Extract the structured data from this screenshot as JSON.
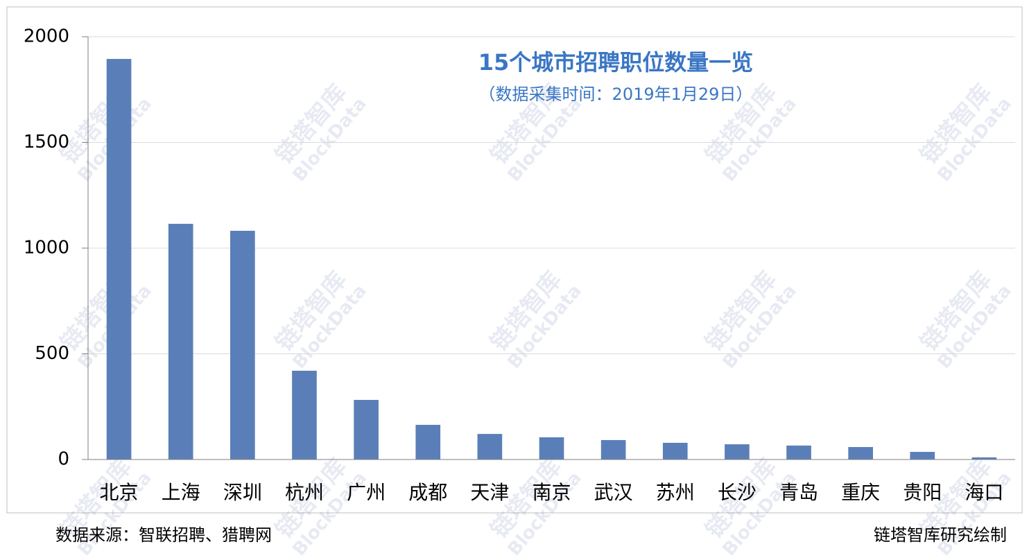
{
  "chart_data": {
    "type": "bar",
    "title": "15个城市招聘职位数量一览",
    "subtitle": "（数据采集时间：2019年1月29日）",
    "categories": [
      "北京",
      "上海",
      "深圳",
      "杭州",
      "广州",
      "成都",
      "天津",
      "南京",
      "武汉",
      "苏州",
      "长沙",
      "青岛",
      "重庆",
      "贵阳",
      "海口"
    ],
    "values": [
      1895,
      1115,
      1082,
      420,
      282,
      164,
      121,
      105,
      92,
      79,
      72,
      66,
      59,
      36,
      10
    ],
    "color": "#5a7fb8",
    "ylim": [
      0,
      2000
    ],
    "yticks": [
      0,
      500,
      1000,
      1500,
      2000
    ],
    "grid": true,
    "source": "数据来源：智联招聘、猎聘网",
    "credit": "链塔智库研究绘制",
    "watermark": [
      "链塔智库",
      "BlockData"
    ]
  }
}
